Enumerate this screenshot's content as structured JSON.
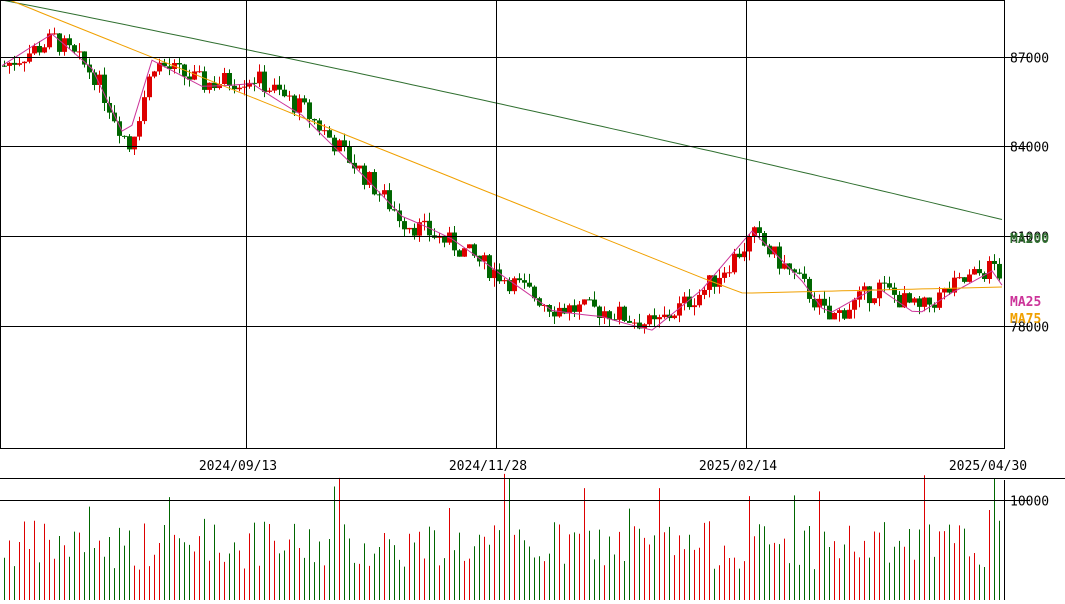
{
  "chart_data": [
    {
      "type": "candlestick",
      "title": "",
      "x_tick_labels": [
        "2024/09/13",
        "2024/11/28",
        "2025/02/14",
        "2025/04/30"
      ],
      "y_tick_labels": [
        "87000",
        "84000",
        "81000",
        "78000"
      ],
      "y_ticks": [
        87000,
        84000,
        81000,
        78000
      ],
      "ylim": [
        73900,
        88900
      ],
      "grid": true,
      "up_color": "#dd0000",
      "down_color": "#006600",
      "moving_averages": [
        {
          "name": "MA200",
          "color": "#2f6f2f",
          "start": 88900,
          "end": 81550
        },
        {
          "name": "MA25",
          "color": "#cc3399",
          "start": 87500,
          "end": 79650
        },
        {
          "name": "MA75",
          "color": "#f0a000",
          "start": 89000,
          "end": 79050
        }
      ],
      "ohlc_note": "approximate daily candles reconstructed from the image",
      "ohlc_seed": {
        "count": 200,
        "start": 87200,
        "end": 79500
      }
    },
    {
      "type": "bar",
      "title": "",
      "y_tick_labels": [
        "10000"
      ],
      "y_ticks": [
        10000
      ],
      "ylim": [
        0,
        12000
      ],
      "grid": true
    }
  ]
}
